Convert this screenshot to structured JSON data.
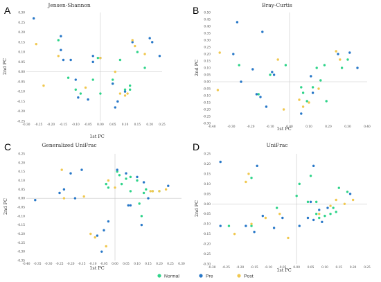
{
  "legend": [
    {
      "key": "normal",
      "label": "Normal",
      "color": "#2fd48a"
    },
    {
      "key": "pre",
      "label": "Pre",
      "color": "#2878c8"
    },
    {
      "key": "post",
      "label": "Post",
      "color": "#f0c850"
    }
  ],
  "chart_data": [
    {
      "type": "scatter",
      "letter": "A",
      "title": "Jensen-Shannon",
      "xlabel": "1st PC",
      "ylabel": "2nd PC",
      "xlim": [
        -0.3,
        0.25
      ],
      "ylim": [
        -0.25,
        0.3
      ],
      "xticks": [
        "-0.30",
        "-0.25",
        "-0.20",
        "-0.15",
        "-0.10",
        "-0.05",
        "0.00",
        "0.05",
        "0.10",
        "0.15",
        "0.20",
        "0.25"
      ],
      "yticks": [
        "-0.25",
        "-0.20",
        "-0.15",
        "-0.10",
        "-0.05",
        "0.00",
        "0.05",
        "0.10",
        "0.15",
        "0.20",
        "0.25",
        "0.30"
      ],
      "grid": false,
      "series": [
        {
          "key": "normal",
          "points": [
            [
              -0.17,
              0.16
            ],
            [
              -0.13,
              -0.03
            ],
            [
              -0.1,
              -0.09
            ],
            [
              -0.08,
              -0.11
            ],
            [
              -0.03,
              -0.04
            ],
            [
              -0.01,
              0.07
            ],
            [
              0.0,
              -0.11
            ],
            [
              0.05,
              -0.04
            ],
            [
              0.05,
              -0.06
            ],
            [
              0.08,
              0.06
            ],
            [
              0.1,
              -0.09
            ],
            [
              0.12,
              -0.07
            ],
            [
              0.12,
              -0.09
            ],
            [
              0.15,
              0.1
            ],
            [
              0.18,
              0.02
            ]
          ]
        },
        {
          "key": "pre",
          "points": [
            [
              -0.27,
              0.27
            ],
            [
              -0.16,
              0.18
            ],
            [
              -0.16,
              0.11
            ],
            [
              -0.15,
              0.06
            ],
            [
              -0.12,
              0.06
            ],
            [
              -0.1,
              -0.04
            ],
            [
              -0.09,
              -0.13
            ],
            [
              -0.05,
              -0.14
            ],
            [
              -0.03,
              0.08
            ],
            [
              -0.03,
              0.05
            ],
            [
              0.0,
              0.07
            ],
            [
              0.05,
              -0.06
            ],
            [
              0.06,
              -0.18
            ],
            [
              0.07,
              -0.15
            ],
            [
              0.1,
              -0.1
            ],
            [
              0.13,
              0.15
            ],
            [
              0.2,
              0.17
            ],
            [
              0.21,
              0.15
            ],
            [
              0.24,
              0.08
            ]
          ]
        },
        {
          "key": "post",
          "points": [
            [
              -0.26,
              0.14
            ],
            [
              -0.23,
              -0.07
            ],
            [
              -0.17,
              0.08
            ],
            [
              -0.06,
              -0.08
            ],
            [
              0.0,
              0.07
            ],
            [
              0.06,
              0.0
            ],
            [
              0.08,
              -0.11
            ],
            [
              0.1,
              -0.12
            ],
            [
              0.11,
              -0.11
            ],
            [
              0.13,
              0.16
            ],
            [
              0.14,
              0.13
            ],
            [
              0.18,
              0.09
            ]
          ]
        }
      ]
    },
    {
      "type": "scatter",
      "letter": "B",
      "title": "Bray-Curtis",
      "xlabel": "1st PC",
      "ylabel": "2nd PC",
      "xlim": [
        -0.4,
        0.4
      ],
      "ylim": [
        -0.3,
        0.5
      ],
      "xticks": [
        "-0.40",
        "-0.30",
        "-0.20",
        "-0.10",
        "0.00",
        "0.10",
        "0.20",
        "0.30",
        "0.40"
      ],
      "yticks": [
        "-0.30",
        "-0.25",
        "-0.20",
        "-0.15",
        "-0.10",
        "-0.05",
        "0.00",
        "0.05",
        "0.10",
        "0.15",
        "0.20",
        "0.25",
        "0.30",
        "0.35",
        "0.40",
        "0.45",
        "0.50"
      ],
      "grid": false,
      "series": [
        {
          "key": "normal",
          "points": [
            [
              -0.26,
              0.12
            ],
            [
              -0.16,
              -0.09
            ],
            [
              -0.1,
              0.05
            ],
            [
              -0.02,
              0.12
            ],
            [
              0.06,
              -0.04
            ],
            [
              0.07,
              -0.08
            ],
            [
              0.09,
              -0.14
            ],
            [
              0.12,
              -0.04
            ],
            [
              0.14,
              0.1
            ],
            [
              0.16,
              0.01
            ],
            [
              0.18,
              0.12
            ],
            [
              0.19,
              -0.14
            ],
            [
              0.27,
              0.1
            ],
            [
              0.3,
              0.16
            ]
          ]
        },
        {
          "key": "pre",
          "points": [
            [
              -0.29,
              0.2
            ],
            [
              -0.27,
              0.43
            ],
            [
              -0.25,
              0.0
            ],
            [
              -0.19,
              0.09
            ],
            [
              -0.17,
              -0.09
            ],
            [
              -0.15,
              -0.11
            ],
            [
              -0.14,
              0.36
            ],
            [
              -0.12,
              -0.18
            ],
            [
              -0.09,
              0.07
            ],
            [
              -0.08,
              0.05
            ],
            [
              0.06,
              -0.23
            ],
            [
              0.11,
              0.04
            ],
            [
              0.12,
              -0.08
            ],
            [
              0.25,
              0.2
            ],
            [
              0.31,
              0.21
            ],
            [
              0.35,
              0.1
            ]
          ]
        },
        {
          "key": "post",
          "points": [
            [
              -0.36,
              0.21
            ],
            [
              -0.37,
              -0.06
            ],
            [
              -0.06,
              0.16
            ],
            [
              -0.03,
              -0.2
            ],
            [
              0.05,
              -0.13
            ],
            [
              0.07,
              -0.18
            ],
            [
              0.1,
              -0.15
            ],
            [
              0.15,
              -0.05
            ],
            [
              0.24,
              0.22
            ],
            [
              0.26,
              0.16
            ]
          ]
        }
      ]
    },
    {
      "type": "scatter",
      "letter": "C",
      "title": "Generalized UniFrac",
      "xlabel": "1st PC",
      "ylabel": "2nd PC",
      "xlim": [
        -0.4,
        0.3
      ],
      "ylim": [
        -0.35,
        0.25
      ],
      "xticks": [
        "-0.40",
        "-0.35",
        "-0.30",
        "-0.25",
        "-0.20",
        "-0.15",
        "-0.10",
        "-0.05",
        "0.00",
        "0.05",
        "0.10",
        "0.15",
        "0.20",
        "0.25",
        "0.30"
      ],
      "yticks": [
        "-0.35",
        "-0.30",
        "-0.25",
        "-0.20",
        "-0.15",
        "-0.10",
        "-0.05",
        "0.00",
        "0.05",
        "0.10",
        "0.15",
        "0.20",
        "0.25"
      ],
      "grid": false,
      "series": [
        {
          "key": "normal",
          "points": [
            [
              -0.04,
              0.08
            ],
            [
              -0.03,
              0.06
            ],
            [
              0.01,
              0.15
            ],
            [
              0.02,
              0.13
            ],
            [
              0.03,
              0.08
            ],
            [
              0.05,
              0.11
            ],
            [
              0.07,
              0.12
            ],
            [
              0.07,
              0.04
            ],
            [
              0.1,
              0.1
            ],
            [
              0.11,
              -0.03
            ],
            [
              0.12,
              -0.1
            ],
            [
              0.13,
              0.03
            ],
            [
              0.14,
              0.05
            ],
            [
              0.17,
              0.04
            ],
            [
              0.2,
              0.04
            ]
          ]
        },
        {
          "key": "pre",
          "points": [
            [
              -0.36,
              -0.01
            ],
            [
              -0.25,
              0.03
            ],
            [
              -0.23,
              0.05
            ],
            [
              -0.2,
              0.14
            ],
            [
              -0.18,
              0.0
            ],
            [
              -0.15,
              0.16
            ],
            [
              -0.08,
              -0.21
            ],
            [
              -0.06,
              -0.3
            ],
            [
              -0.05,
              -0.18
            ],
            [
              -0.03,
              -0.13
            ],
            [
              0.01,
              0.16
            ],
            [
              0.05,
              0.14
            ],
            [
              0.06,
              -0.04
            ],
            [
              0.07,
              -0.04
            ],
            [
              0.1,
              0.12
            ],
            [
              0.12,
              -0.15
            ],
            [
              0.13,
              0.09
            ],
            [
              0.15,
              0.0
            ],
            [
              0.24,
              0.07
            ]
          ]
        },
        {
          "key": "post",
          "points": [
            [
              -0.24,
              0.16
            ],
            [
              -0.23,
              0.0
            ],
            [
              -0.14,
              0.01
            ],
            [
              -0.11,
              -0.2
            ],
            [
              -0.09,
              -0.22
            ],
            [
              -0.03,
              0.1
            ],
            [
              -0.04,
              -0.27
            ],
            [
              0.0,
              0.06
            ],
            [
              0.16,
              0.04
            ],
            [
              0.17,
              0.04
            ],
            [
              0.2,
              0.04
            ],
            [
              0.23,
              0.05
            ]
          ]
        }
      ]
    },
    {
      "type": "scatter",
      "letter": "D",
      "title": "UniFrac",
      "xlabel": "1st PC",
      "ylabel": "2nd PC",
      "xlim": [
        -0.3,
        0.25
      ],
      "ylim": [
        -0.3,
        0.25
      ],
      "xticks": [
        "-0.30",
        "-0.25",
        "-0.20",
        "-0.15",
        "-0.10",
        "-0.05",
        "0.00",
        "0.05",
        "0.10",
        "0.15",
        "0.20",
        "0.25"
      ],
      "yticks": [
        "-0.30",
        "-0.25",
        "-0.20",
        "-0.15",
        "-0.10",
        "-0.05",
        "0.00",
        "0.05",
        "0.10",
        "0.15",
        "0.20",
        "0.25"
      ],
      "grid": false,
      "series": [
        {
          "key": "normal",
          "points": [
            [
              -0.24,
              -0.11
            ],
            [
              -0.16,
              -0.11
            ],
            [
              -0.16,
              0.13
            ],
            [
              -0.07,
              -0.02
            ],
            [
              0.0,
              0.04
            ],
            [
              0.01,
              0.1
            ],
            [
              0.04,
              0.01
            ],
            [
              0.05,
              0.14
            ],
            [
              0.07,
              0.01
            ],
            [
              0.07,
              -0.05
            ],
            [
              0.08,
              -0.07
            ],
            [
              0.1,
              -0.06
            ],
            [
              0.12,
              -0.05
            ],
            [
              0.13,
              -0.02
            ],
            [
              0.14,
              -0.04
            ],
            [
              0.15,
              0.08
            ],
            [
              0.18,
              0.06
            ]
          ]
        },
        {
          "key": "pre",
          "points": [
            [
              -0.27,
              0.21
            ],
            [
              -0.27,
              -0.11
            ],
            [
              -0.18,
              -0.11
            ],
            [
              -0.15,
              -0.14
            ],
            [
              -0.14,
              0.19
            ],
            [
              -0.12,
              -0.06
            ],
            [
              -0.08,
              -0.12
            ],
            [
              -0.05,
              -0.07
            ],
            [
              0.01,
              -0.11
            ],
            [
              0.04,
              -0.07
            ],
            [
              0.05,
              0.01
            ],
            [
              0.06,
              -0.08
            ],
            [
              0.06,
              0.19
            ],
            [
              0.08,
              -0.03
            ],
            [
              0.09,
              -0.09
            ],
            [
              0.11,
              -0.02
            ],
            [
              0.19,
              0.05
            ]
          ]
        },
        {
          "key": "post",
          "points": [
            [
              -0.22,
              -0.15
            ],
            [
              -0.18,
              0.11
            ],
            [
              -0.17,
              0.15
            ],
            [
              -0.16,
              -0.1
            ],
            [
              -0.11,
              -0.07
            ],
            [
              -0.06,
              -0.05
            ],
            [
              -0.03,
              -0.17
            ],
            [
              0.08,
              -0.05
            ],
            [
              0.12,
              -0.01
            ],
            [
              0.14,
              0.02
            ],
            [
              0.17,
              0.0
            ],
            [
              0.2,
              0.02
            ]
          ]
        }
      ]
    }
  ]
}
